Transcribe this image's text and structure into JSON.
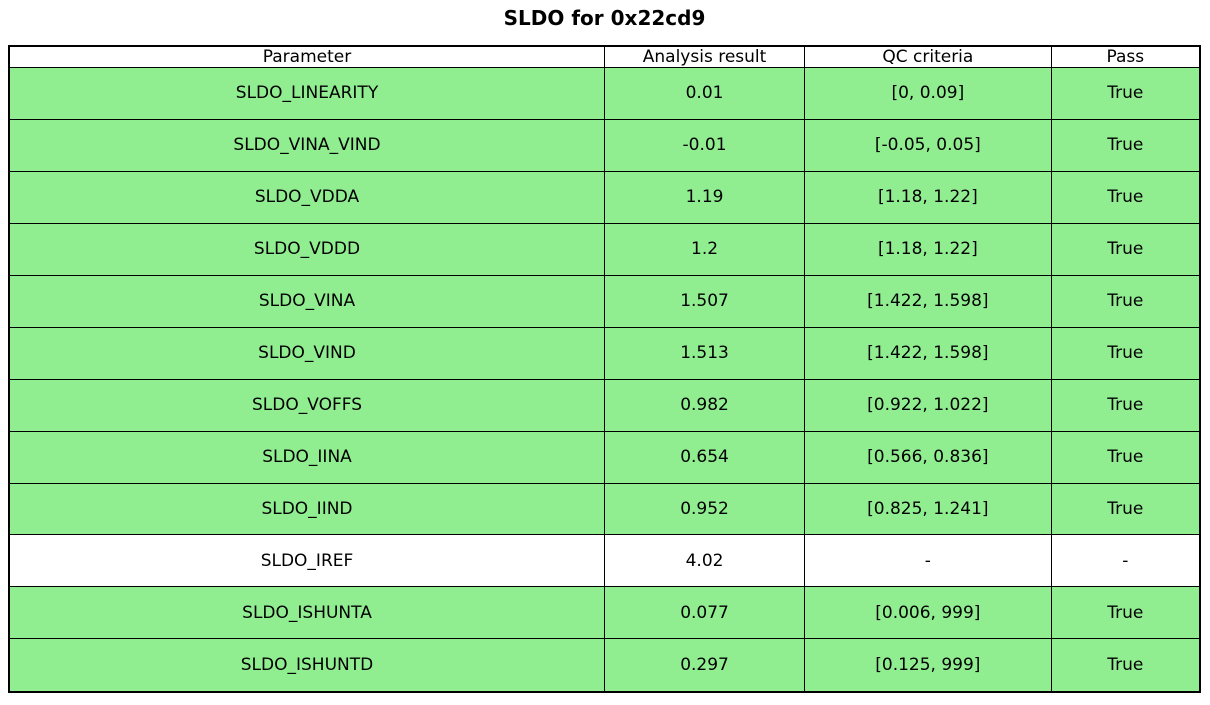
{
  "title": "SLDO for 0x22cd9",
  "colors": {
    "pass_row_bg": "#90ee90",
    "plain_row_bg": "#ffffff",
    "border": "#000000",
    "text": "#000000"
  },
  "chart_data": {
    "type": "table",
    "title": "SLDO for 0x22cd9",
    "columns": [
      "Parameter",
      "Analysis result",
      "QC criteria",
      "Pass"
    ],
    "rows": [
      {
        "parameter": "SLDO_LINEARITY",
        "analysis_result": "0.01",
        "qc_criteria": "[0, 0.09]",
        "pass": "True",
        "highlight": true
      },
      {
        "parameter": "SLDO_VINA_VIND",
        "analysis_result": "-0.01",
        "qc_criteria": "[-0.05, 0.05]",
        "pass": "True",
        "highlight": true
      },
      {
        "parameter": "SLDO_VDDA",
        "analysis_result": "1.19",
        "qc_criteria": "[1.18, 1.22]",
        "pass": "True",
        "highlight": true
      },
      {
        "parameter": "SLDO_VDDD",
        "analysis_result": "1.2",
        "qc_criteria": "[1.18, 1.22]",
        "pass": "True",
        "highlight": true
      },
      {
        "parameter": "SLDO_VINA",
        "analysis_result": "1.507",
        "qc_criteria": "[1.422, 1.598]",
        "pass": "True",
        "highlight": true
      },
      {
        "parameter": "SLDO_VIND",
        "analysis_result": "1.513",
        "qc_criteria": "[1.422, 1.598]",
        "pass": "True",
        "highlight": true
      },
      {
        "parameter": "SLDO_VOFFS",
        "analysis_result": "0.982",
        "qc_criteria": "[0.922, 1.022]",
        "pass": "True",
        "highlight": true
      },
      {
        "parameter": "SLDO_IINA",
        "analysis_result": "0.654",
        "qc_criteria": "[0.566, 0.836]",
        "pass": "True",
        "highlight": true
      },
      {
        "parameter": "SLDO_IIND",
        "analysis_result": "0.952",
        "qc_criteria": "[0.825, 1.241]",
        "pass": "True",
        "highlight": true
      },
      {
        "parameter": "SLDO_IREF",
        "analysis_result": "4.02",
        "qc_criteria": "-",
        "pass": "-",
        "highlight": false
      },
      {
        "parameter": "SLDO_ISHUNTA",
        "analysis_result": "0.077",
        "qc_criteria": "[0.006, 999]",
        "pass": "True",
        "highlight": true
      },
      {
        "parameter": "SLDO_ISHUNTD",
        "analysis_result": "0.297",
        "qc_criteria": "[0.125, 999]",
        "pass": "True",
        "highlight": true
      }
    ]
  }
}
